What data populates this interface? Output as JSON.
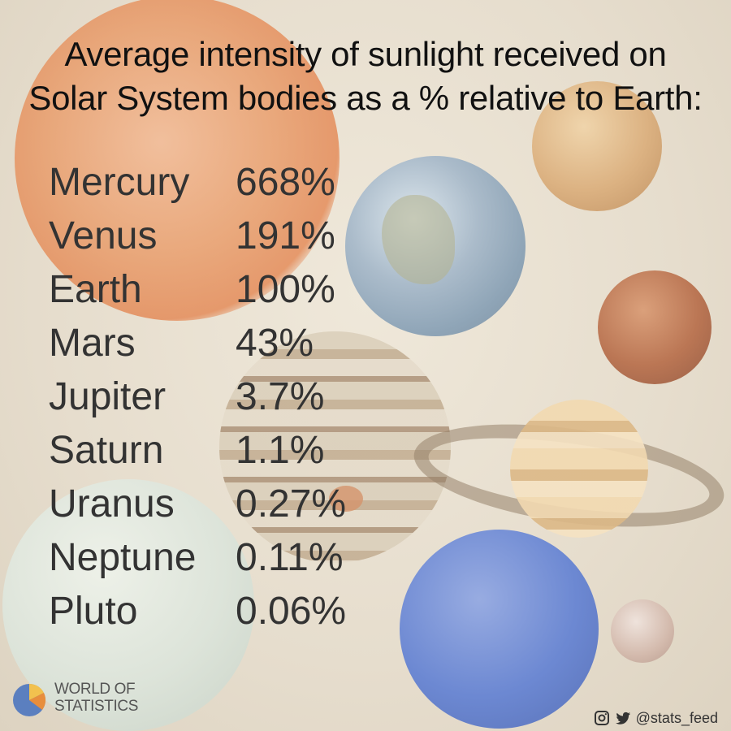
{
  "title_lines": [
    "Average intensity of sunlight received on",
    "Solar System bodies as a % relative to Earth:"
  ],
  "brand": {
    "line1": "WORLD OF",
    "line2": "STATISTICS"
  },
  "social": {
    "handle": "@stats_feed",
    "icons": [
      "instagram-icon",
      "twitter-icon"
    ]
  },
  "logo_colors": {
    "blue": "#5b7fbf",
    "orange": "#e88d3c",
    "yellow": "#f2c14e"
  },
  "rows": [
    {
      "name": "Mercury",
      "value": "668%"
    },
    {
      "name": "Venus",
      "value": "191%"
    },
    {
      "name": "Earth",
      "value": "100%"
    },
    {
      "name": "Mars",
      "value": "43%"
    },
    {
      "name": "Jupiter",
      "value": "3.7%"
    },
    {
      "name": "Saturn",
      "value": "1.1%"
    },
    {
      "name": "Uranus",
      "value": "0.27%"
    },
    {
      "name": "Neptune",
      "value": "0.11%"
    },
    {
      "name": "Pluto",
      "value": "0.06%"
    }
  ],
  "chart_data": {
    "type": "table",
    "title": "Average intensity of sunlight received on Solar System bodies as a % relative to Earth:",
    "categories": [
      "Mercury",
      "Venus",
      "Earth",
      "Mars",
      "Jupiter",
      "Saturn",
      "Uranus",
      "Neptune",
      "Pluto"
    ],
    "values": [
      668,
      191,
      100,
      43,
      3.7,
      1.1,
      0.27,
      0.11,
      0.06
    ]
  }
}
